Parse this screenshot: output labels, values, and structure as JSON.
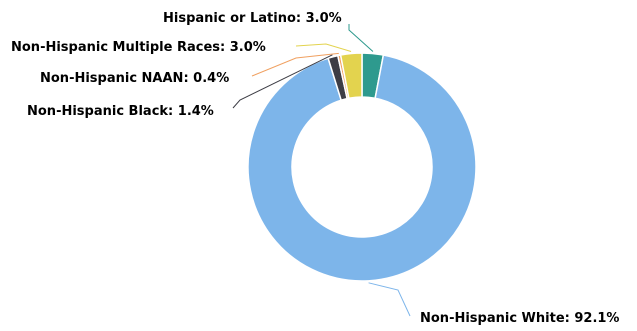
{
  "chart_data": {
    "type": "pie",
    "donut": true,
    "title": "",
    "legend": "none",
    "slices": [
      {
        "name": "Hispanic or Latino",
        "value": 3.0,
        "label": "Hispanic or Latino: 3.0%",
        "color": "#2e9a8e"
      },
      {
        "name": "Non-Hispanic White",
        "value": 92.1,
        "label": "Non-Hispanic White: 92.1%",
        "color": "#7db5ea"
      },
      {
        "name": "Non-Hispanic Black",
        "value": 1.4,
        "label": "Non-Hispanic Black: 1.4%",
        "color": "#3d3d45"
      },
      {
        "name": "Non-Hispanic NAAN",
        "value": 0.4,
        "label": "Non-Hispanic NAAN: 0.4%",
        "color": "#f0a060"
      },
      {
        "name": "Non-Hispanic Multiple Races",
        "value": 3.0,
        "label": "Non-Hispanic Multiple Races: 3.0%",
        "color": "#e3d34e"
      }
    ]
  }
}
